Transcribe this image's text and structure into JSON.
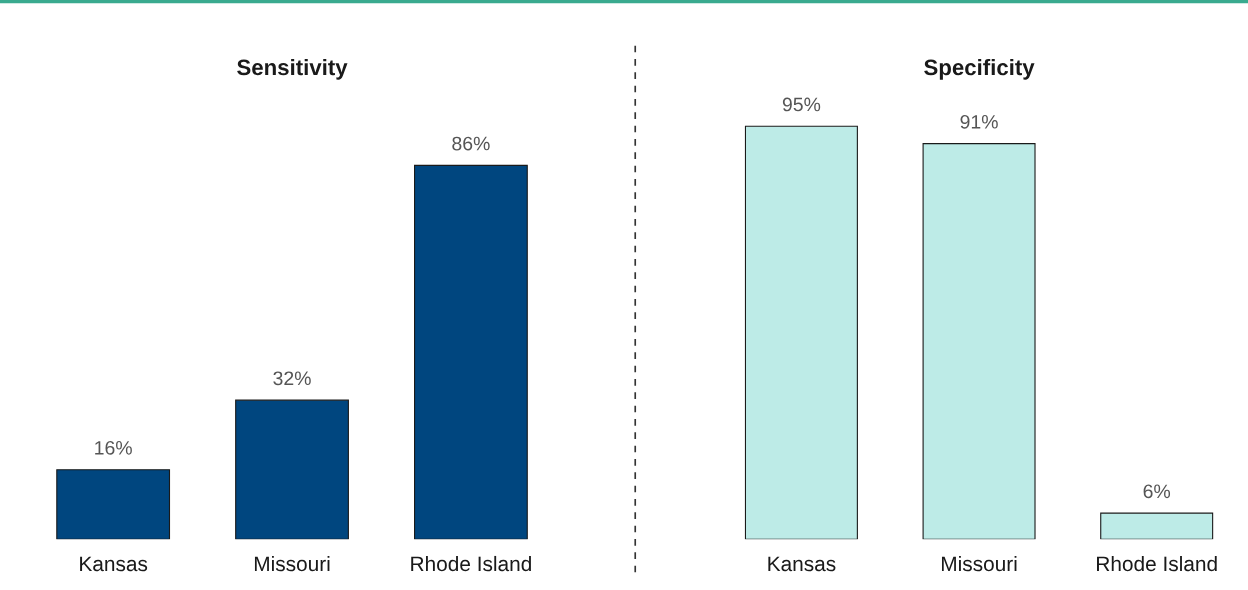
{
  "chart_data": [
    {
      "type": "bar",
      "title": "Sensitivity",
      "categories": [
        "Kansas",
        "Missouri",
        "Rhode Island"
      ],
      "values": [
        16,
        32,
        86
      ],
      "color": "#00467f",
      "data_labels": true,
      "value_labels": [
        "16%",
        "32%",
        "86%"
      ],
      "grid": false,
      "legend": false
    },
    {
      "type": "bar",
      "title": "Specificity",
      "categories": [
        "Kansas",
        "Missouri",
        "Rhode Island"
      ],
      "values": [
        95,
        91,
        6
      ],
      "color": "#bdebe7",
      "data_labels": true,
      "value_labels": [
        "95%",
        "91%",
        "6%"
      ],
      "grid": false,
      "legend": false
    }
  ]
}
